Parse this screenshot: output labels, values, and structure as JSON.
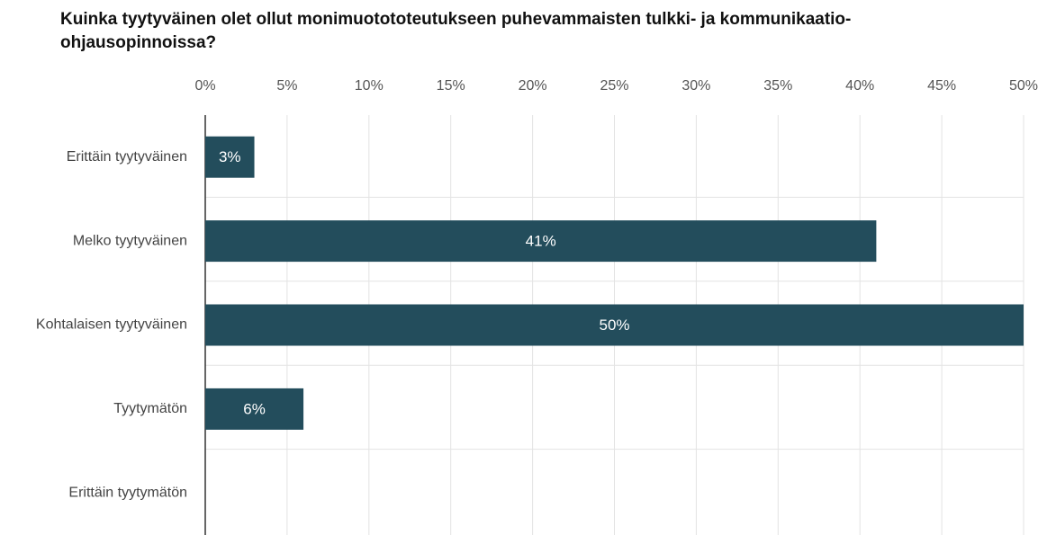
{
  "chart_data": {
    "type": "barh",
    "title": [
      "Kuinka tyytyväinen olet ollut monimuotototeutukseen puhevammaisten tulkki- ja kommunikaatio-",
      "ohjausopinnoissa?"
    ],
    "categories": [
      "Erittäin tyytyväinen",
      "Melko tyytyväinen",
      "Kohtalaisen tyytyväinen",
      "Tyytymätön",
      "Erittäin tyytymätön"
    ],
    "values": [
      3,
      41,
      50,
      6,
      0
    ],
    "value_labels": [
      "3%",
      "41%",
      "50%",
      "6%",
      null
    ],
    "color": "#234d5c",
    "xlim": [
      0,
      50
    ],
    "xticks": [
      {
        "value": 0,
        "label": "0%"
      },
      {
        "value": 5,
        "label": "5%"
      },
      {
        "value": 10,
        "label": "10%"
      },
      {
        "value": 15,
        "label": "15%"
      },
      {
        "value": 20,
        "label": "20%"
      },
      {
        "value": 25,
        "label": "25%"
      },
      {
        "value": 30,
        "label": "30%"
      },
      {
        "value": 35,
        "label": "35%"
      },
      {
        "value": 40,
        "label": "40%"
      },
      {
        "value": 45,
        "label": "45%"
      },
      {
        "value": 50,
        "label": "50%"
      }
    ],
    "grid": true
  }
}
